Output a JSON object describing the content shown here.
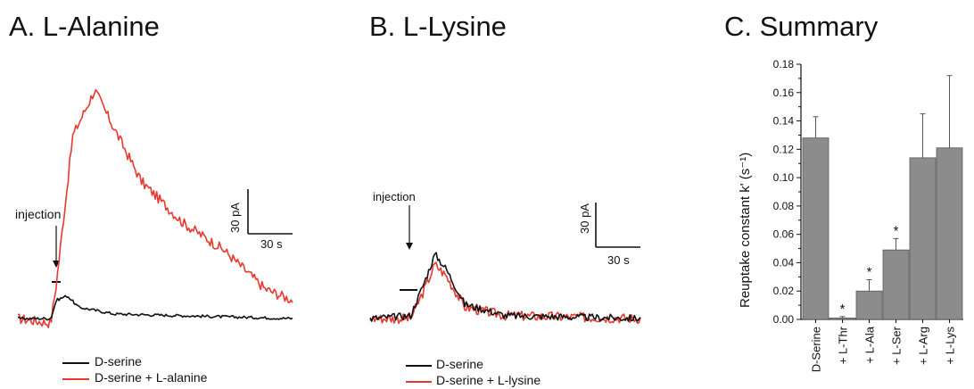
{
  "panels": {
    "a": {
      "title": "A. L-Alanine",
      "annotation": "injection",
      "scalebar": {
        "y_label": "30 pA",
        "x_label": "30 s"
      },
      "legend": [
        "D-serine",
        "D-serine + L-alanine"
      ]
    },
    "b": {
      "title": "B. L-Lysine",
      "annotation": "injection",
      "scalebar": {
        "y_label": "30 pA",
        "x_label": "30 s"
      },
      "legend": [
        "D-serine",
        "D-serine + L-lysine"
      ]
    },
    "c": {
      "title": "C. Summary",
      "ylabel": "Reuptake constant k' (s⁻¹)"
    }
  },
  "colors": {
    "control": "#111111",
    "treated": "#e8382f",
    "bar": "#8c8c8c"
  },
  "chart_data": [
    {
      "type": "line",
      "title": "A. L-Alanine",
      "series": [
        {
          "name": "D-serine",
          "shape": [
            [
              0,
              0
            ],
            [
              0.12,
              0
            ],
            [
              0.14,
              0.08
            ],
            [
              0.18,
              0.1
            ],
            [
              0.22,
              0.05
            ],
            [
              0.35,
              0.02
            ],
            [
              1,
              0
            ]
          ]
        },
        {
          "name": "D-serine + L-alanine",
          "shape": [
            [
              0,
              0
            ],
            [
              0.12,
              -0.02
            ],
            [
              0.14,
              0.15
            ],
            [
              0.2,
              0.8
            ],
            [
              0.28,
              1.0
            ],
            [
              0.33,
              0.88
            ],
            [
              0.45,
              0.6
            ],
            [
              0.6,
              0.42
            ],
            [
              0.75,
              0.3
            ],
            [
              0.9,
              0.13
            ],
            [
              1,
              0.08
            ]
          ]
        }
      ],
      "annotations": [
        "injection"
      ],
      "scalebar": {
        "y": "30 pA",
        "x": "30 s"
      }
    },
    {
      "type": "line",
      "title": "B. L-Lysine",
      "series": [
        {
          "name": "D-serine",
          "shape": [
            [
              0,
              0
            ],
            [
              0.15,
              0.02
            ],
            [
              0.2,
              0.25
            ],
            [
              0.24,
              0.45
            ],
            [
              0.28,
              0.35
            ],
            [
              0.35,
              0.1
            ],
            [
              0.5,
              0.02
            ],
            [
              1,
              0
            ]
          ]
        },
        {
          "name": "D-serine + L-lysine",
          "shape": [
            [
              0,
              0
            ],
            [
              0.15,
              0
            ],
            [
              0.2,
              0.2
            ],
            [
              0.24,
              0.38
            ],
            [
              0.28,
              0.3
            ],
            [
              0.35,
              0.08
            ],
            [
              0.5,
              0.02
            ],
            [
              1,
              0
            ]
          ]
        }
      ],
      "annotations": [
        "injection"
      ],
      "scalebar": {
        "y": "30 pA",
        "x": "30 s"
      }
    },
    {
      "type": "bar",
      "title": "C. Summary",
      "categories": [
        "D-Serine",
        "+ L-Thr",
        "+ L-Ala",
        "+ L-Ser",
        "+ L-Arg",
        "+ L-Lys"
      ],
      "values": [
        0.128,
        0.001,
        0.02,
        0.049,
        0.114,
        0.121
      ],
      "errors": [
        0.015,
        0.001,
        0.008,
        0.008,
        0.031,
        0.051
      ],
      "significant": [
        false,
        true,
        true,
        true,
        false,
        false
      ],
      "sig_marker": "*",
      "ylabel": "Reuptake constant k' (s⁻¹)",
      "ylim": [
        0,
        0.18
      ],
      "yticks": [
        "0.00",
        "0.02",
        "0.04",
        "0.06",
        "0.08",
        "0.10",
        "0.12",
        "0.14",
        "0.16",
        "0.18"
      ]
    }
  ]
}
